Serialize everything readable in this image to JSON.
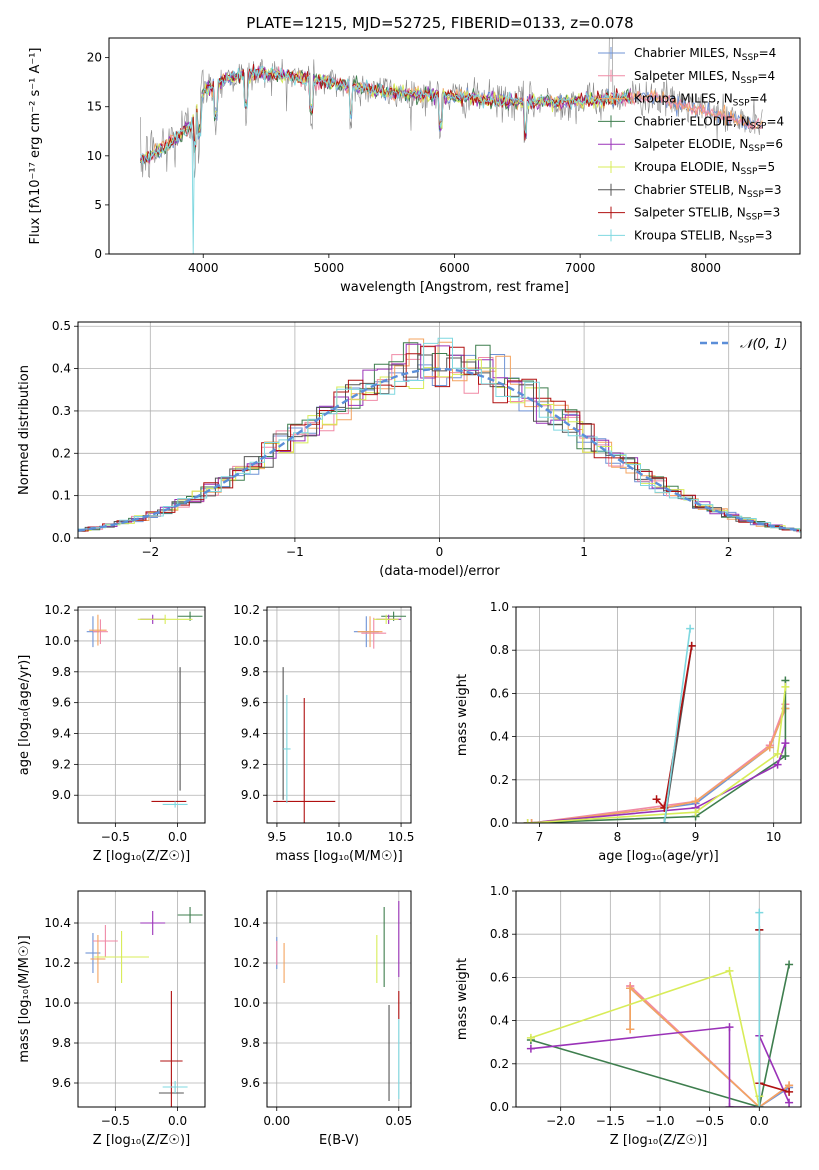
{
  "figure_title": "PLATE=1215, MJD=52725, FIBERID=0133, z=0.078",
  "colors": {
    "Chabrier MILES": "#6f93d6",
    "Salpeter MILES": "#f08aa6",
    "Kroupa MILES": "#f4a460",
    "Chabrier ELODIE": "#3e7e4e",
    "Salpeter ELODIE": "#9a32b8",
    "Kroupa ELODIE": "#d8ec58",
    "Chabrier STELIB": "#555555",
    "Salpeter STELIB": "#b01010",
    "Kroupa STELIB": "#7fd8e0",
    "gauss": "#5b8ed8"
  },
  "legend_spectrum": {
    "entries": [
      {
        "label": "Chabrier MILES",
        "nssp": "4"
      },
      {
        "label": "Salpeter MILES",
        "nssp": "4"
      },
      {
        "label": "Kroupa MILES",
        "nssp": "4"
      },
      {
        "label": "Chabrier ELODIE",
        "nssp": "4"
      },
      {
        "label": "Salpeter ELODIE",
        "nssp": "6"
      },
      {
        "label": "Kroupa ELODIE",
        "nssp": "5"
      },
      {
        "label": "Chabrier STELIB",
        "nssp": "3"
      },
      {
        "label": "Salpeter STELIB",
        "nssp": "3"
      },
      {
        "label": "Kroupa STELIB",
        "nssp": "3"
      }
    ]
  },
  "legend_hist": {
    "label": "𝒩(0, 1)"
  },
  "chart_data": [
    {
      "id": "spectrum",
      "type": "line",
      "title": "PLATE=1215, MJD=52725, FIBERID=0133, z=0.078",
      "xlabel": "wavelength [Angstrom, rest frame]",
      "ylabel": "Flux [fλ10⁻¹⁷ erg cm⁻² s⁻¹ A⁻¹]",
      "xlim": [
        3250,
        8750
      ],
      "ylim": [
        0,
        22
      ],
      "xticks": [
        4000,
        5000,
        6000,
        7000,
        8000
      ],
      "yticks": [
        0,
        5,
        10,
        15,
        20
      ],
      "grid": false,
      "continuum": [
        [
          3500,
          9.5
        ],
        [
          3700,
          11
        ],
        [
          3900,
          13
        ],
        [
          4000,
          16.5
        ],
        [
          4200,
          18
        ],
        [
          4500,
          18.5
        ],
        [
          5000,
          17.5
        ],
        [
          5500,
          16.5
        ],
        [
          6000,
          16
        ],
        [
          6500,
          15.5
        ],
        [
          7000,
          15.5
        ],
        [
          7400,
          16
        ],
        [
          7600,
          16
        ],
        [
          8000,
          14.5
        ],
        [
          8300,
          13.5
        ],
        [
          8500,
          13
        ]
      ]
    },
    {
      "id": "residual_hist",
      "type": "line",
      "xlabel": "(data-model)/error",
      "ylabel": "Normed distribution",
      "xlim": [
        -2.5,
        2.5
      ],
      "ylim": [
        0,
        0.51
      ],
      "xticks": [
        -2,
        -1,
        0,
        1,
        2
      ],
      "yticks": [
        0.0,
        0.1,
        0.2,
        0.3,
        0.4,
        0.5
      ],
      "grid": true,
      "legend": "top-right",
      "bin_width": 0.1
    },
    {
      "id": "age_vs_Z",
      "type": "scatter",
      "xlabel": "Z [log₁₀(Z/Z☉)]",
      "ylabel": "age  [log₁₀(age/yr)]",
      "xlim": [
        -0.8,
        0.22
      ],
      "ylim": [
        8.82,
        10.22
      ],
      "xticks": [
        -0.5,
        0.0
      ],
      "yticks": [
        9.0,
        9.2,
        9.4,
        9.6,
        9.8,
        10.0,
        10.2
      ],
      "grid": true,
      "points": [
        {
          "model": "Chabrier MILES",
          "x": -0.68,
          "y": 10.06,
          "xerr": 0.05,
          "yerr": 0.1
        },
        {
          "model": "Salpeter MILES",
          "x": -0.62,
          "y": 10.06,
          "xerr": 0.06,
          "yerr": 0.08
        },
        {
          "model": "Kroupa MILES",
          "x": -0.64,
          "y": 10.07,
          "xerr": 0.07,
          "yerr": 0.1
        },
        {
          "model": "Chabrier ELODIE",
          "x": 0.1,
          "y": 10.16,
          "xerr": 0.1,
          "yerr": 0.03
        },
        {
          "model": "Salpeter ELODIE",
          "x": -0.2,
          "y": 10.14,
          "xerr": 0.1,
          "yerr": 0.03
        },
        {
          "model": "Kroupa ELODIE",
          "x": -0.1,
          "y": 10.14,
          "xerr": 0.22,
          "yerr": 0.03
        },
        {
          "model": "Chabrier STELIB",
          "x": 0.02,
          "y": 9.43,
          "xerr": 0.0,
          "yerr": 0.4
        },
        {
          "model": "Salpeter STELIB",
          "x": -0.07,
          "y": 8.96,
          "xerr": 0.14,
          "yerr": 0.0
        },
        {
          "model": "Kroupa STELIB",
          "x": -0.02,
          "y": 8.94,
          "xerr": 0.1,
          "yerr": 0.02
        }
      ]
    },
    {
      "id": "age_vs_mass",
      "type": "scatter",
      "xlabel": "mass [log₁₀(M/M☉)]",
      "ylabel": "",
      "xlim": [
        9.42,
        10.58
      ],
      "ylim": [
        8.82,
        10.22
      ],
      "xticks": [
        9.5,
        10.0,
        10.5
      ],
      "yticks": [
        9.0,
        9.2,
        9.4,
        9.6,
        9.8,
        10.0,
        10.2
      ],
      "grid": true,
      "points": [
        {
          "model": "Chabrier MILES",
          "x": 10.22,
          "y": 10.06,
          "xerr": 0.1,
          "yerr": 0.1
        },
        {
          "model": "Salpeter MILES",
          "x": 10.28,
          "y": 10.05,
          "xerr": 0.1,
          "yerr": 0.1
        },
        {
          "model": "Kroupa MILES",
          "x": 10.25,
          "y": 10.06,
          "xerr": 0.1,
          "yerr": 0.1
        },
        {
          "model": "Chabrier ELODIE",
          "x": 10.44,
          "y": 10.16,
          "xerr": 0.1,
          "yerr": 0.03
        },
        {
          "model": "Salpeter ELODIE",
          "x": 10.4,
          "y": 10.14,
          "xerr": 0.1,
          "yerr": 0.03
        },
        {
          "model": "Kroupa ELODIE",
          "x": 10.38,
          "y": 10.14,
          "xerr": 0.1,
          "yerr": 0.03
        },
        {
          "model": "Chabrier STELIB",
          "x": 9.55,
          "y": 9.4,
          "xerr": 0.0,
          "yerr": 0.43
        },
        {
          "model": "Salpeter STELIB",
          "x": 9.72,
          "y": 8.96,
          "xerr": 0.25,
          "yerr": 0.67
        },
        {
          "model": "Kroupa STELIB",
          "x": 9.58,
          "y": 9.3,
          "xerr": 0.03,
          "yerr": 0.35
        }
      ]
    },
    {
      "id": "weight_vs_age",
      "type": "line",
      "xlabel": "age  [log₁₀(age/yr)]",
      "ylabel": "mass weight",
      "xlim": [
        6.7,
        10.35
      ],
      "ylim": [
        0,
        1.0
      ],
      "xticks": [
        7,
        8,
        9,
        10
      ],
      "yticks": [
        0.0,
        0.2,
        0.4,
        0.6,
        0.8,
        1.0
      ],
      "grid": true,
      "series": [
        {
          "model": "Chabrier MILES",
          "points": [
            [
              6.9,
              0.0
            ],
            [
              8.6,
              0.07
            ],
            [
              9.0,
              0.09
            ],
            [
              9.95,
              0.35
            ],
            [
              10.15,
              0.53
            ]
          ]
        },
        {
          "model": "Salpeter MILES",
          "points": [
            [
              6.9,
              0.0
            ],
            [
              8.6,
              0.08
            ],
            [
              9.0,
              0.1
            ],
            [
              9.95,
              0.36
            ],
            [
              10.15,
              0.55
            ]
          ]
        },
        {
          "model": "Kroupa MILES",
          "points": [
            [
              6.9,
              0.0
            ],
            [
              8.6,
              0.07
            ],
            [
              9.0,
              0.1
            ],
            [
              9.95,
              0.35
            ],
            [
              10.15,
              0.53
            ]
          ]
        },
        {
          "model": "Chabrier ELODIE",
          "points": [
            [
              6.85,
              0.0
            ],
            [
              9.0,
              0.03
            ],
            [
              10.15,
              0.31
            ],
            [
              10.15,
              0.66
            ]
          ]
        },
        {
          "model": "Salpeter ELODIE",
          "points": [
            [
              6.85,
              0.0
            ],
            [
              9.0,
              0.07
            ],
            [
              10.05,
              0.27
            ],
            [
              10.15,
              0.37
            ]
          ]
        },
        {
          "model": "Kroupa ELODIE",
          "points": [
            [
              6.85,
              0.0
            ],
            [
              9.0,
              0.05
            ],
            [
              10.05,
              0.32
            ],
            [
              10.15,
              0.63
            ]
          ]
        },
        {
          "model": "Chabrier STELIB",
          "points": [
            [
              8.6,
              0.0
            ],
            [
              8.95,
              0.82
            ]
          ]
        },
        {
          "model": "Salpeter STELIB",
          "points": [
            [
              8.5,
              0.11
            ],
            [
              8.6,
              0.07
            ],
            [
              8.95,
              0.82
            ]
          ]
        },
        {
          "model": "Kroupa STELIB",
          "points": [
            [
              8.6,
              0.0
            ],
            [
              8.93,
              0.9
            ]
          ]
        }
      ]
    },
    {
      "id": "mass_vs_Z",
      "type": "scatter",
      "xlabel": "Z [log₁₀(Z/Z☉)]",
      "ylabel": "mass [log₁₀(M/M☉)]",
      "xlim": [
        -0.8,
        0.22
      ],
      "ylim": [
        9.48,
        10.56
      ],
      "xticks": [
        -0.5,
        0.0
      ],
      "yticks": [
        9.6,
        9.8,
        10.0,
        10.2,
        10.4
      ],
      "grid": true,
      "points": [
        {
          "model": "Chabrier MILES",
          "x": -0.68,
          "y": 10.25,
          "xerr": 0.06,
          "yerr": 0.1
        },
        {
          "model": "Salpeter MILES",
          "x": -0.58,
          "y": 10.31,
          "xerr": 0.1,
          "yerr": 0.08
        },
        {
          "model": "Kroupa MILES",
          "x": -0.64,
          "y": 10.22,
          "xerr": 0.06,
          "yerr": 0.12
        },
        {
          "model": "Chabrier ELODIE",
          "x": 0.1,
          "y": 10.44,
          "xerr": 0.1,
          "yerr": 0.04
        },
        {
          "model": "Salpeter ELODIE",
          "x": -0.2,
          "y": 10.4,
          "xerr": 0.1,
          "yerr": 0.06
        },
        {
          "model": "Kroupa ELODIE",
          "x": -0.45,
          "y": 10.23,
          "xerr": 0.22,
          "yerr": 0.13
        },
        {
          "model": "Chabrier STELIB",
          "x": -0.05,
          "y": 9.55,
          "xerr": 0.1,
          "yerr": 0.0
        },
        {
          "model": "Salpeter STELIB",
          "x": -0.05,
          "y": 9.71,
          "xerr": 0.09,
          "yerr": 0.35
        },
        {
          "model": "Kroupa STELIB",
          "x": -0.02,
          "y": 9.58,
          "xerr": 0.1,
          "yerr": 0.03
        }
      ]
    },
    {
      "id": "mass_vs_ebv",
      "type": "scatter",
      "xlabel": "E(B-V)",
      "ylabel": "",
      "xlim": [
        -0.004,
        0.055
      ],
      "ylim": [
        9.48,
        10.56
      ],
      "xticks": [
        0.0,
        0.05
      ],
      "yticks": [
        9.6,
        9.8,
        10.0,
        10.2,
        10.4
      ],
      "grid": true,
      "points": [
        {
          "model": "Chabrier MILES",
          "x": 0.0,
          "y": 10.25,
          "xerr": 0.0,
          "yerr": 0.08
        },
        {
          "model": "Salpeter MILES",
          "x": 0.0,
          "y": 10.25,
          "xerr": 0.0,
          "yerr": 0.06
        },
        {
          "model": "Kroupa MILES",
          "x": 0.003,
          "y": 10.2,
          "xerr": 0.0,
          "yerr": 0.1
        },
        {
          "model": "Chabrier ELODIE",
          "x": 0.044,
          "y": 10.28,
          "xerr": 0.0,
          "yerr": 0.2
        },
        {
          "model": "Salpeter ELODIE",
          "x": 0.05,
          "y": 10.32,
          "xerr": 0.0,
          "yerr": 0.19
        },
        {
          "model": "Kroupa ELODIE",
          "x": 0.041,
          "y": 10.22,
          "xerr": 0.0,
          "yerr": 0.12
        },
        {
          "model": "Chabrier STELIB",
          "x": 0.046,
          "y": 9.75,
          "xerr": 0.0,
          "yerr": 0.24
        },
        {
          "model": "Salpeter STELIB",
          "x": 0.05,
          "y": 9.99,
          "xerr": 0.0,
          "yerr": 0.07
        },
        {
          "model": "Kroupa STELIB",
          "x": 0.05,
          "y": 9.72,
          "xerr": 0.0,
          "yerr": 0.2
        }
      ]
    },
    {
      "id": "weight_vs_Z",
      "type": "line",
      "xlabel": "Z [log₁₀(Z/Z☉)]",
      "ylabel": "mass weight",
      "xlim": [
        -2.45,
        0.42
      ],
      "ylim": [
        0,
        1.0
      ],
      "xticks": [
        -2.0,
        -1.5,
        -1.0,
        -0.5,
        0.0
      ],
      "yticks": [
        0.0,
        0.2,
        0.4,
        0.6,
        0.8,
        1.0
      ],
      "grid": true,
      "series": [
        {
          "model": "Chabrier MILES",
          "points": [
            [
              -1.3,
              0.55
            ],
            [
              -1.3,
              0.36
            ],
            [
              -1.3,
              0.55
            ],
            [
              0.0,
              0.0
            ],
            [
              0.3,
              0.09
            ]
          ]
        },
        {
          "model": "Salpeter MILES",
          "points": [
            [
              -1.3,
              0.56
            ],
            [
              -1.3,
              0.36
            ],
            [
              -1.3,
              0.56
            ],
            [
              0.0,
              0.0
            ],
            [
              0.3,
              0.1
            ]
          ]
        },
        {
          "model": "Kroupa MILES",
          "points": [
            [
              -1.3,
              0.55
            ],
            [
              -1.3,
              0.36
            ],
            [
              -1.3,
              0.55
            ],
            [
              0.0,
              0.0
            ],
            [
              0.3,
              0.1
            ]
          ]
        },
        {
          "model": "Chabrier ELODIE",
          "points": [
            [
              0.3,
              0.66
            ],
            [
              0.0,
              0.0
            ],
            [
              -2.3,
              0.31
            ],
            [
              0.0,
              0.0
            ]
          ]
        },
        {
          "model": "Salpeter ELODIE",
          "points": [
            [
              0.3,
              0.02
            ],
            [
              0.0,
              0.33
            ],
            [
              0.0,
              0.0
            ],
            [
              -0.3,
              0.0
            ],
            [
              -0.3,
              0.37
            ],
            [
              -2.3,
              0.27
            ]
          ]
        },
        {
          "model": "Kroupa ELODIE",
          "points": [
            [
              -2.3,
              0.32
            ],
            [
              -0.3,
              0.63
            ],
            [
              0.0,
              0.0
            ],
            [
              0.0,
              0.05
            ]
          ]
        },
        {
          "model": "Chabrier STELIB",
          "points": [
            [
              0.0,
              0.82
            ],
            [
              0.0,
              0.0
            ]
          ]
        },
        {
          "model": "Salpeter STELIB",
          "points": [
            [
              0.0,
              0.82
            ],
            [
              0.0,
              0.11
            ],
            [
              0.3,
              0.07
            ]
          ]
        },
        {
          "model": "Kroupa STELIB",
          "points": [
            [
              0.0,
              0.9
            ],
            [
              0.0,
              0.0
            ]
          ]
        }
      ]
    }
  ]
}
